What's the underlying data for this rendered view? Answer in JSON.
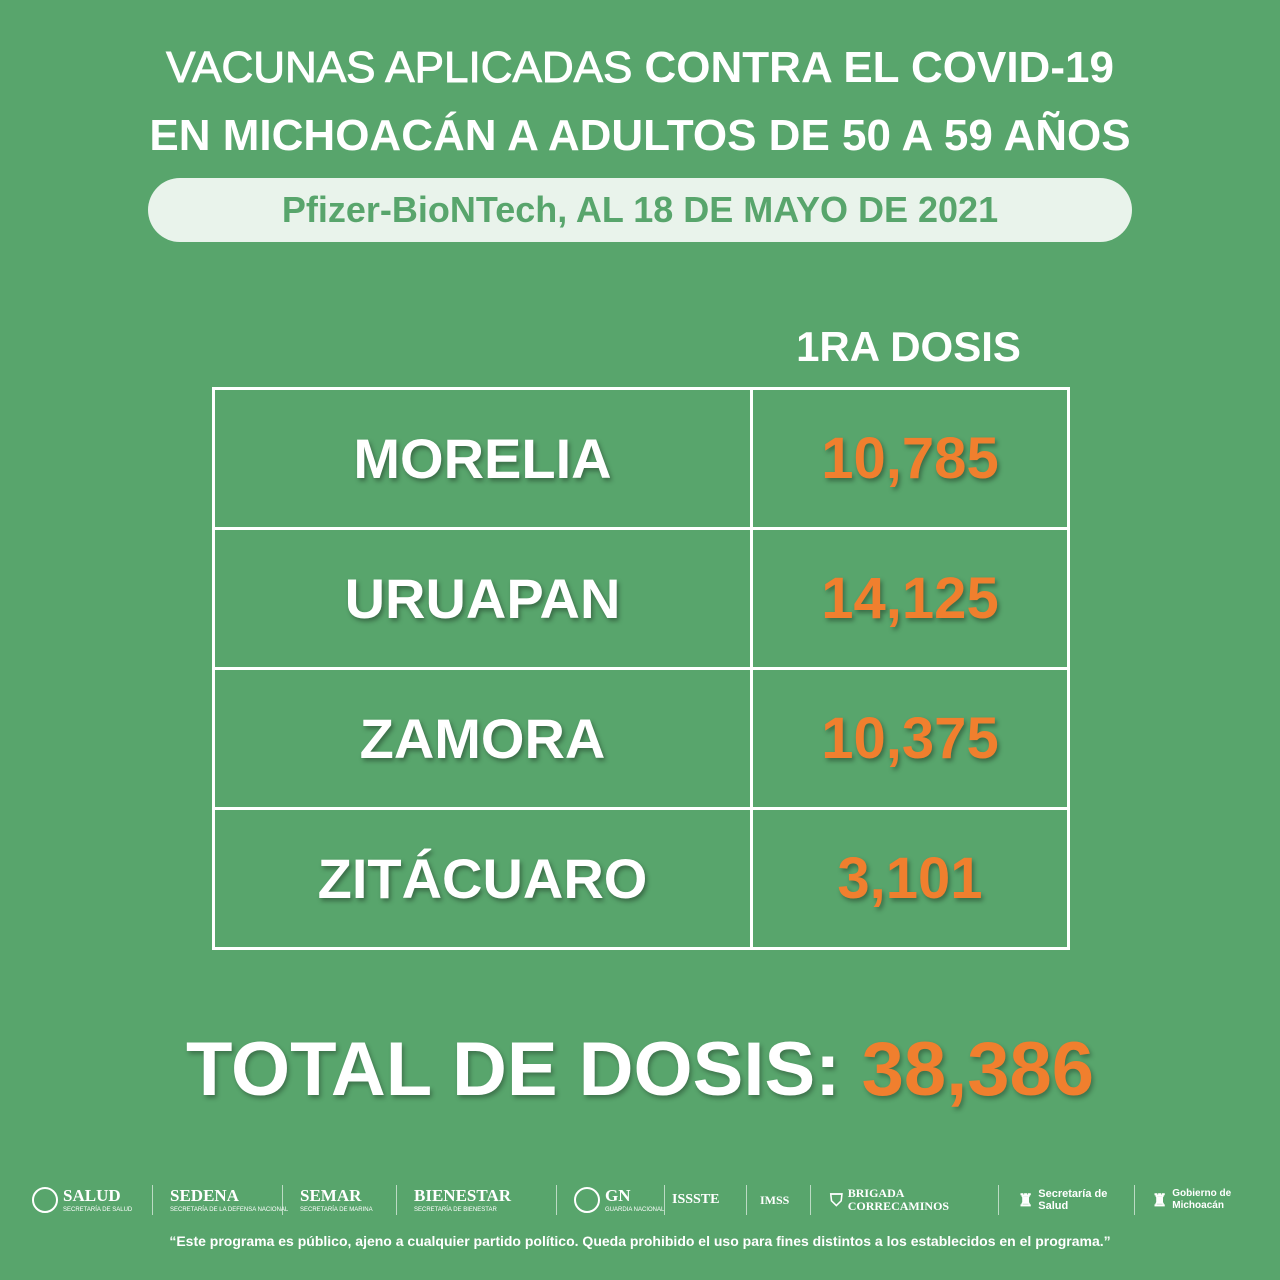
{
  "title": {
    "line1_light": "VACUNAS APLICADAS",
    "line1_bold": "CONTRA EL COVID-19",
    "line2": "EN MICHOACÁN A ADULTOS DE 50 A 59 AÑOS"
  },
  "subtitle": "Pfizer-BioNTech, AL 18 DE MAYO DE 2021",
  "table": {
    "column_header": "1RA DOSIS",
    "rows": [
      {
        "city": "MORELIA",
        "doses": "10,785"
      },
      {
        "city": "URUAPAN",
        "doses": "14,125"
      },
      {
        "city": "ZAMORA",
        "doses": "10,375"
      },
      {
        "city": "ZITÁCUARO",
        "doses": "3,101"
      }
    ]
  },
  "total": {
    "label": "TOTAL DE DOSIS:",
    "value": "38,386"
  },
  "logos": [
    {
      "name": "SALUD",
      "sub": "SECRETARÍA DE SALUD"
    },
    {
      "name": "SEDENA",
      "sub": "SECRETARÍA DE LA DEFENSA NACIONAL"
    },
    {
      "name": "SEMAR",
      "sub": "SECRETARÍA DE MARINA"
    },
    {
      "name": "BIENESTAR",
      "sub": "SECRETARÍA DE BIENESTAR"
    },
    {
      "name": "GN",
      "sub": "GUARDIA NACIONAL"
    },
    {
      "name": "ISSSTE"
    },
    {
      "name": "IMSS"
    },
    {
      "name": "BRIGADA CORRECAMINOS"
    },
    {
      "name": "Secretaría de Salud"
    },
    {
      "name": "Gobierno de Michoacán"
    }
  ],
  "disclaimer": "“Este programa es público, ajeno a cualquier partido político. Queda prohibido el uso para fines distintos a los establecidos en el programa.”",
  "colors": {
    "background": "#58a56c",
    "accent": "#f07f2e",
    "pill": "#e9f3eb"
  }
}
